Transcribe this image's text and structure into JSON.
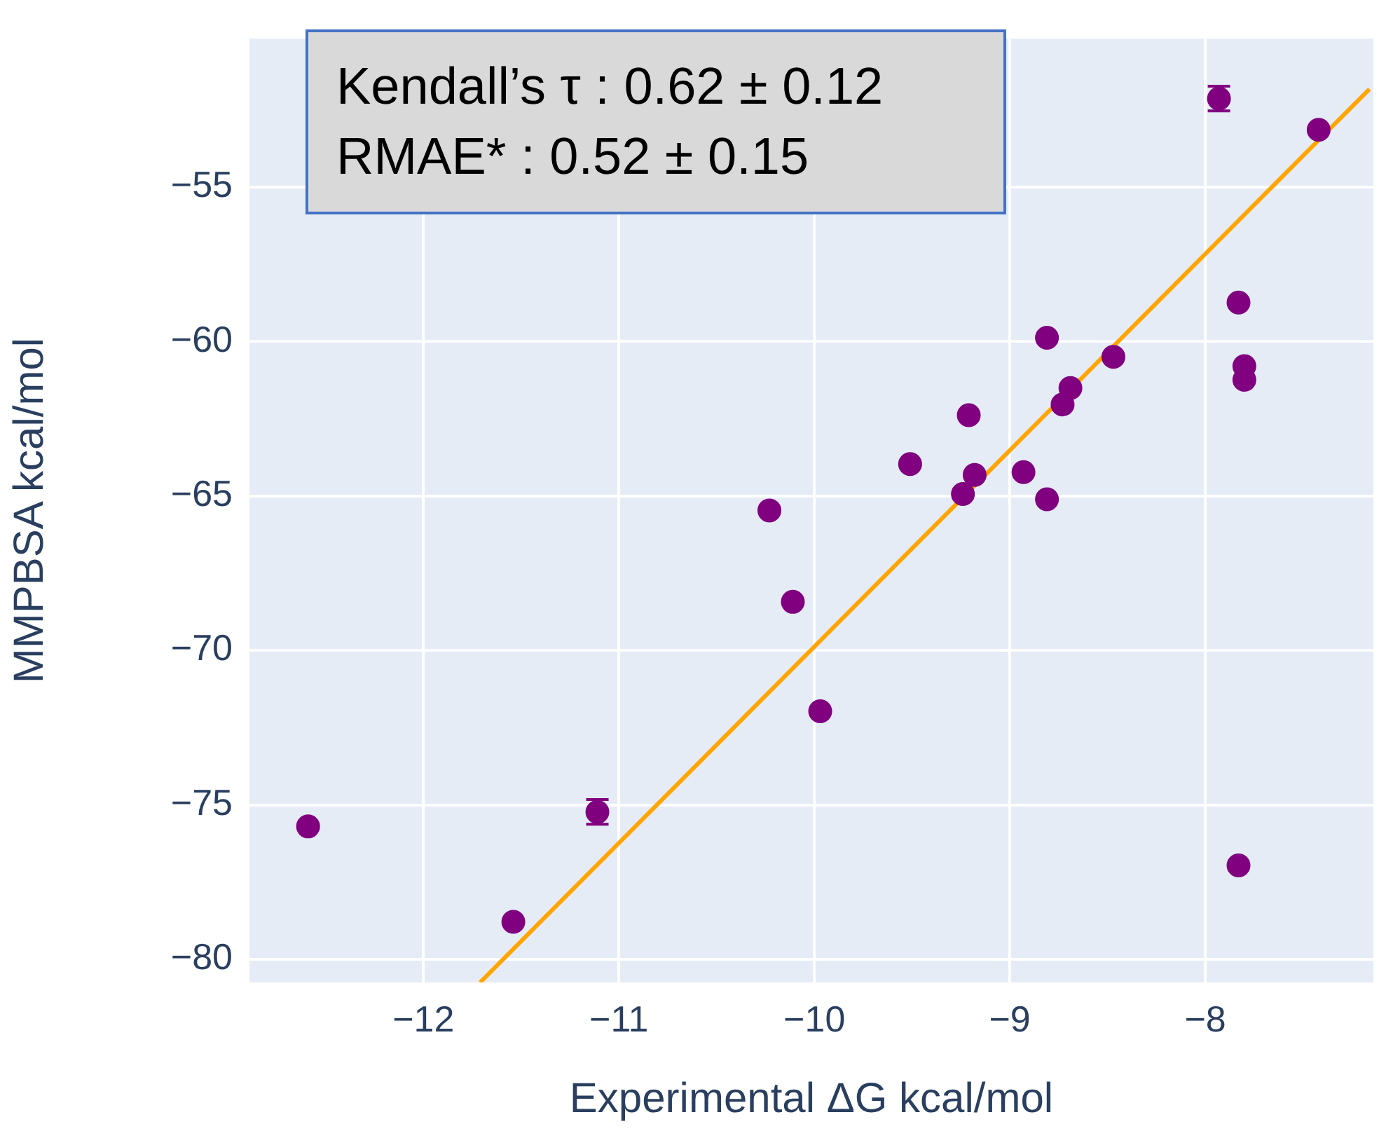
{
  "chart_data": {
    "type": "scatter",
    "xlabel": "Experimental ΔG kcal/mol",
    "ylabel": "MMPBSA kcal/mol",
    "annotations": [
      "Kendall’s τ : 0.62 ± 0.12",
      "RMAE* : 0.52 ± 0.15"
    ],
    "xlim": [
      -12.89,
      -7.14
    ],
    "ylim": [
      -80.75,
      -50.2
    ],
    "xticks": [
      {
        "value": -12,
        "label": "−12"
      },
      {
        "value": -11,
        "label": "−11"
      },
      {
        "value": -10,
        "label": "−10"
      },
      {
        "value": -9,
        "label": "−9"
      },
      {
        "value": -8,
        "label": "−8"
      }
    ],
    "yticks": [
      {
        "value": -80,
        "label": "−80"
      },
      {
        "value": -75,
        "label": "−75"
      },
      {
        "value": -70,
        "label": "−70"
      },
      {
        "value": -65,
        "label": "−65"
      },
      {
        "value": -60,
        "label": "−60"
      },
      {
        "value": -55,
        "label": "−55"
      }
    ],
    "grid": true,
    "series": [
      {
        "marker": "circle",
        "color": "#800080",
        "x": [
          -7.93,
          -7.42,
          -7.83,
          -7.8,
          -7.8,
          -8.81,
          -8.47,
          -8.69,
          -8.73,
          -9.21,
          -9.51,
          -8.93,
          -9.18,
          -9.24,
          -8.81,
          -10.23,
          -10.11,
          -9.97,
          -11.11,
          -12.59,
          -11.54,
          -7.83
        ],
        "values": [
          -52.14,
          -53.15,
          -58.74,
          -60.8,
          -61.24,
          -59.88,
          -60.5,
          -61.51,
          -62.04,
          -62.39,
          -63.97,
          -64.23,
          -64.32,
          -64.94,
          -65.11,
          -65.47,
          -68.43,
          -71.97,
          -75.23,
          -75.7,
          -78.79,
          -76.96
        ],
        "errors": [
          0.4,
          null,
          null,
          null,
          null,
          null,
          null,
          null,
          null,
          null,
          null,
          null,
          null,
          null,
          null,
          null,
          null,
          null,
          0.4,
          null,
          null,
          null
        ]
      },
      {
        "type": "line",
        "marker": "none",
        "color": "#ffa500",
        "x": [
          -11.71,
          -7.16
        ],
        "values": [
          -80.75,
          -51.83
        ]
      }
    ]
  }
}
